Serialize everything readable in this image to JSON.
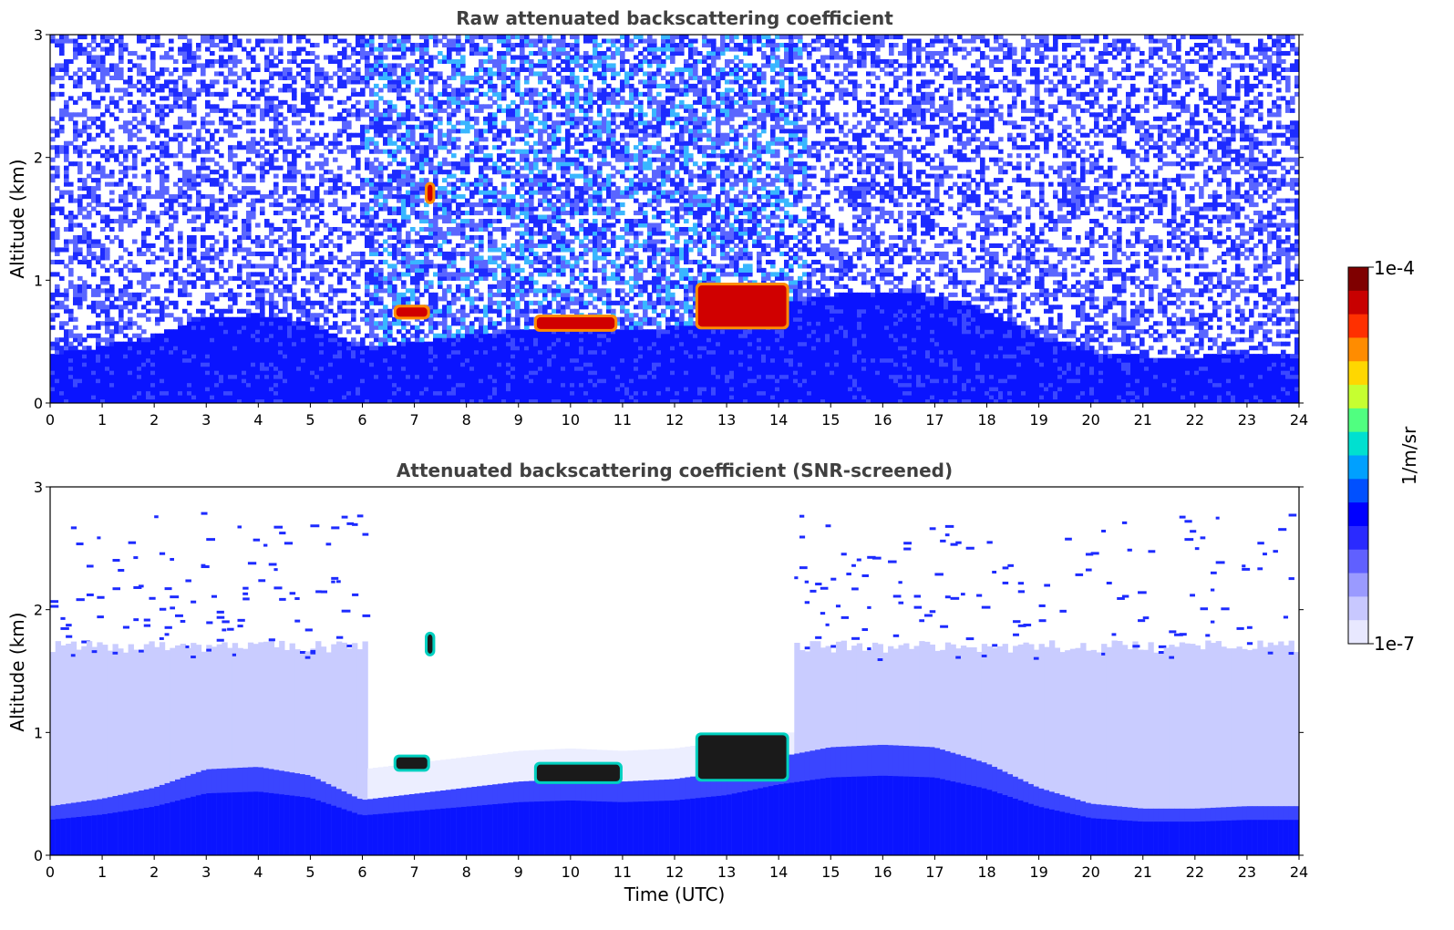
{
  "chart_data": [
    {
      "type": "heatmap",
      "title": "Raw attenuated backscattering coefficient",
      "xlabel": "",
      "ylabel": "Altitude (km)",
      "xlim": [
        0,
        24
      ],
      "ylim": [
        0,
        3
      ],
      "xticks": [
        "0",
        "1",
        "2",
        "3",
        "4",
        "5",
        "6",
        "7",
        "8",
        "9",
        "10",
        "11",
        "12",
        "13",
        "14",
        "15",
        "16",
        "17",
        "18",
        "19",
        "20",
        "21",
        "22",
        "23",
        "24"
      ],
      "yticks": [
        "0",
        "1",
        "2",
        "3"
      ],
      "boundary_layer_top_km": [
        [
          0,
          0.4
        ],
        [
          1,
          0.46
        ],
        [
          2,
          0.55
        ],
        [
          3,
          0.7
        ],
        [
          4,
          0.72
        ],
        [
          5,
          0.65
        ],
        [
          6,
          0.45
        ],
        [
          7,
          0.5
        ],
        [
          8,
          0.55
        ],
        [
          9,
          0.6
        ],
        [
          10,
          0.62
        ],
        [
          11,
          0.6
        ],
        [
          12,
          0.62
        ],
        [
          13,
          0.68
        ],
        [
          14,
          0.8
        ],
        [
          15,
          0.88
        ],
        [
          16,
          0.9
        ],
        [
          17,
          0.88
        ],
        [
          18,
          0.75
        ],
        [
          19,
          0.55
        ],
        [
          20,
          0.42
        ],
        [
          21,
          0.38
        ],
        [
          22,
          0.38
        ],
        [
          23,
          0.4
        ],
        [
          24,
          0.4
        ]
      ],
      "features": [
        {
          "kind": "cloud",
          "t_start": 6.6,
          "t_end": 7.3,
          "alt_km": [
            0.68,
            0.8
          ],
          "level": "1e-4"
        },
        {
          "kind": "cloud",
          "t_start": 7.2,
          "t_end": 7.4,
          "alt_km": [
            1.62,
            1.8
          ],
          "level": "1e-4"
        },
        {
          "kind": "cloud",
          "t_start": 9.3,
          "t_end": 10.9,
          "alt_km": [
            0.58,
            0.72
          ],
          "level": "1e-4"
        },
        {
          "kind": "cloud",
          "t_start": 12.4,
          "t_end": 14.2,
          "alt_km": [
            0.6,
            0.98
          ],
          "level": "1e-4"
        }
      ],
      "noise_band": "daytime 6–15 UTC"
    },
    {
      "type": "heatmap",
      "title": "Attenuated backscattering coefficient (SNR-screened)",
      "xlabel": "Time (UTC)",
      "ylabel": "Altitude (km)",
      "xlim": [
        0,
        24
      ],
      "ylim": [
        0,
        3
      ],
      "xticks": [
        "0",
        "1",
        "2",
        "3",
        "4",
        "5",
        "6",
        "7",
        "8",
        "9",
        "10",
        "11",
        "12",
        "13",
        "14",
        "15",
        "16",
        "17",
        "18",
        "19",
        "20",
        "21",
        "22",
        "23",
        "24"
      ],
      "yticks": [
        "0",
        "1",
        "2",
        "3"
      ],
      "boundary_layer_top_km": [
        [
          0,
          0.4
        ],
        [
          1,
          0.46
        ],
        [
          2,
          0.55
        ],
        [
          3,
          0.7
        ],
        [
          4,
          0.72
        ],
        [
          5,
          0.65
        ],
        [
          6,
          0.45
        ],
        [
          7,
          0.5
        ],
        [
          8,
          0.55
        ],
        [
          9,
          0.6
        ],
        [
          10,
          0.62
        ],
        [
          11,
          0.6
        ],
        [
          12,
          0.62
        ],
        [
          13,
          0.68
        ],
        [
          14,
          0.8
        ],
        [
          15,
          0.88
        ],
        [
          16,
          0.9
        ],
        [
          17,
          0.88
        ],
        [
          18,
          0.75
        ],
        [
          19,
          0.55
        ],
        [
          20,
          0.42
        ],
        [
          21,
          0.38
        ],
        [
          22,
          0.38
        ],
        [
          23,
          0.4
        ],
        [
          24,
          0.4
        ]
      ],
      "features": [
        {
          "kind": "cloud",
          "t_start": 6.6,
          "t_end": 7.3,
          "alt_km": [
            0.68,
            0.82
          ],
          "level": "1e-4"
        },
        {
          "kind": "cloud",
          "t_start": 7.2,
          "t_end": 7.4,
          "alt_km": [
            1.62,
            1.82
          ],
          "level": "1e-4"
        },
        {
          "kind": "cloud",
          "t_start": 9.3,
          "t_end": 11.0,
          "alt_km": [
            0.58,
            0.76
          ],
          "level": "1e-4"
        },
        {
          "kind": "cloud",
          "t_start": 12.4,
          "t_end": 14.2,
          "alt_km": [
            0.6,
            1.0
          ],
          "level": "1e-4"
        }
      ],
      "screened_gap": "6–14.5 UTC above ~1 km"
    }
  ],
  "colorbar": {
    "label": "1/m/sr",
    "max_label": "1e-4",
    "min_label": "1e-7",
    "colors": [
      "#7f0000",
      "#c80000",
      "#ff3000",
      "#ff8c00",
      "#ffd700",
      "#c6ff30",
      "#50ff80",
      "#00e0d0",
      "#00a0ff",
      "#0050ff",
      "#0000ff",
      "#2a2aff",
      "#6060ff",
      "#9a9aff",
      "#c8c8ff",
      "#e8e8ff"
    ]
  },
  "style": {
    "title_color": "#404040",
    "plot_background": "#ffffff",
    "noise_blue": "#0a14ff",
    "pale_blue": "#c9ccff"
  }
}
